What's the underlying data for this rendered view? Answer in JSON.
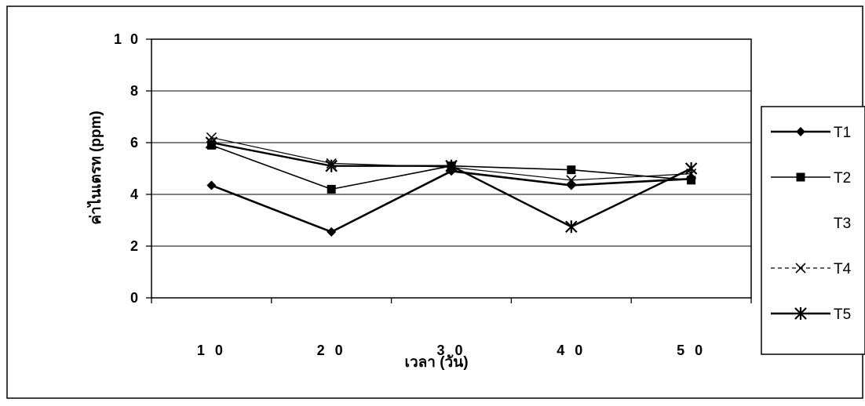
{
  "chart_data": {
    "type": "line",
    "categories": [
      "10",
      "20",
      "30",
      "40",
      "50"
    ],
    "xlabel": "เวลา (วัน)",
    "ylabel": "ค่าไนเตรท (ppm)",
    "ylim": [
      0,
      10
    ],
    "yticks": [
      0,
      2,
      4,
      6,
      8,
      10
    ],
    "ytick_labels": [
      "0",
      "2",
      "4",
      "6",
      "8",
      "1 0"
    ],
    "xtick_labels": [
      "1 0",
      "2 0",
      "3 0",
      "4 0",
      "5 0"
    ],
    "grid": true,
    "legend_position": "right",
    "series": [
      {
        "name": "T1",
        "marker": "diamond",
        "line": "solid",
        "values": [
          4.35,
          2.55,
          4.9,
          4.35,
          4.6
        ]
      },
      {
        "name": "T2",
        "marker": "square",
        "line": "solid",
        "values": [
          5.9,
          4.2,
          5.1,
          4.95,
          4.55
        ]
      },
      {
        "name": "T3",
        "marker": "none",
        "line": "none",
        "values": [
          null,
          null,
          null,
          null,
          null
        ]
      },
      {
        "name": "T4",
        "marker": "x",
        "line": "solid",
        "values": [
          6.2,
          5.2,
          5.05,
          4.55,
          4.8
        ]
      },
      {
        "name": "T5",
        "marker": "asterisk",
        "line": "solid",
        "values": [
          6.0,
          5.1,
          5.1,
          2.75,
          5.0
        ]
      }
    ]
  }
}
